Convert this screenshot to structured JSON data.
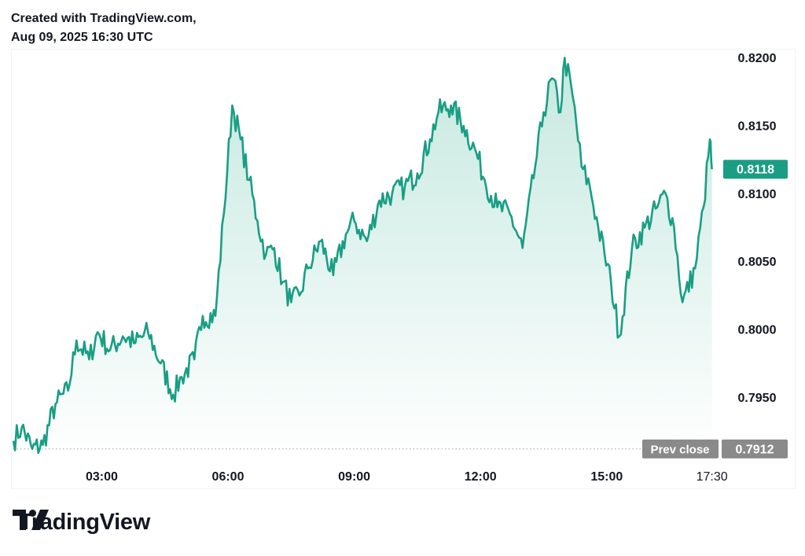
{
  "header": {
    "line1": "Created with TradingView.com,",
    "line2": "Aug 09, 2025 16:30 UTC"
  },
  "brand": {
    "name": "TradingView",
    "icon": "tradingview-logo-icon"
  },
  "colors": {
    "line": "#199e84",
    "fill_top": "#bfe6dc",
    "fill_bottom": "#ffffff",
    "last_price_bg": "#199e84",
    "prev_close_bg": "#8a8a8a"
  },
  "chart_data": {
    "type": "area",
    "title": "",
    "xlabel": "",
    "ylabel": "",
    "x_ticks": [
      "03:00",
      "06:00",
      "09:00",
      "12:00",
      "15:00",
      "17:30"
    ],
    "y_ticks": [
      "0.8200",
      "0.8150",
      "0.8100",
      "0.8050",
      "0.8000",
      "0.7950"
    ],
    "ylim": [
      0.7905,
      0.8205
    ],
    "xlim_hours": [
      0.9,
      17.6
    ],
    "grid": false,
    "last_price": {
      "label": "0.8118",
      "value": 0.8118
    },
    "prev_close": {
      "label": "Prev close",
      "value_label": "0.7912",
      "value": 0.7912
    },
    "series": [
      {
        "hours": [
          0.9,
          1.1,
          1.35,
          1.6,
          1.9,
          2.2,
          2.4,
          2.7,
          2.9,
          3.2,
          3.5,
          3.8,
          4.1,
          4.4,
          4.7,
          4.9,
          5.2,
          5.4,
          5.7,
          5.9,
          6.1,
          6.3,
          6.5,
          6.7,
          6.9,
          7.1,
          7.3,
          7.5,
          7.7,
          7.9,
          8.2,
          8.5,
          8.8,
          9.0,
          9.3,
          9.6,
          9.9,
          10.2,
          10.5,
          10.8,
          11.0,
          11.3,
          11.6,
          11.9,
          12.1,
          12.4,
          12.7,
          13.0,
          13.3,
          13.5,
          13.7,
          13.9,
          14.0,
          14.2,
          14.4,
          14.6,
          14.8,
          14.95,
          15.1,
          15.3,
          15.6,
          15.9,
          16.2,
          16.4,
          16.6,
          16.8,
          17.1,
          17.3,
          17.45,
          17.5
        ],
        "values": [
          0.7918,
          0.7928,
          0.7912,
          0.7915,
          0.7945,
          0.7955,
          0.7992,
          0.7978,
          0.7998,
          0.7985,
          0.7995,
          0.799,
          0.7998,
          0.7975,
          0.7952,
          0.7965,
          0.7978,
          0.801,
          0.801,
          0.8085,
          0.8165,
          0.814,
          0.811,
          0.808,
          0.8055,
          0.806,
          0.8035,
          0.802,
          0.8025,
          0.8045,
          0.8065,
          0.804,
          0.807,
          0.808,
          0.8065,
          0.8095,
          0.81,
          0.8105,
          0.8115,
          0.814,
          0.816,
          0.8165,
          0.815,
          0.813,
          0.811,
          0.809,
          0.8085,
          0.806,
          0.812,
          0.816,
          0.8185,
          0.816,
          0.82,
          0.817,
          0.812,
          0.8105,
          0.8075,
          0.8055,
          0.8035,
          0.7995,
          0.806,
          0.8075,
          0.809,
          0.81,
          0.8075,
          0.802,
          0.8045,
          0.809,
          0.814,
          0.8118
        ]
      }
    ]
  }
}
